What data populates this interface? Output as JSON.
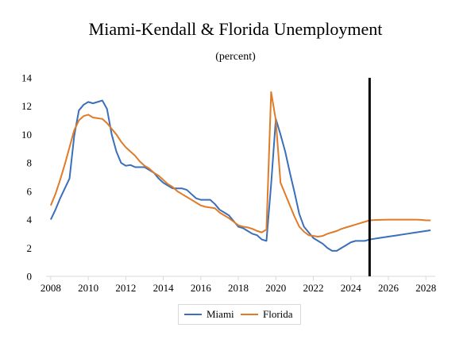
{
  "chart_data": {
    "type": "line",
    "title": "Miami-Kendall & Florida Unemployment",
    "subtitle": "(percent)",
    "xlabel": "",
    "ylabel": "",
    "xlim": [
      2007.75,
      2028.5
    ],
    "ylim": [
      0,
      14
    ],
    "x_ticks": [
      "2008",
      "2010",
      "2012",
      "2014",
      "2016",
      "2018",
      "2020",
      "2022",
      "2024",
      "2026",
      "2028"
    ],
    "y_ticks": [
      "0",
      "2",
      "4",
      "6",
      "8",
      "10",
      "12",
      "14"
    ],
    "grid": false,
    "legend": "bottom",
    "forecast_marker_x": 2025.0,
    "series": [
      {
        "name": "Miami",
        "color": "#3a6fba",
        "x": [
          2008.0,
          2008.25,
          2008.5,
          2008.75,
          2009.0,
          2009.25,
          2009.5,
          2009.75,
          2010.0,
          2010.25,
          2010.5,
          2010.75,
          2011.0,
          2011.25,
          2011.5,
          2011.75,
          2012.0,
          2012.25,
          2012.5,
          2012.75,
          2013.0,
          2013.25,
          2013.5,
          2013.75,
          2014.0,
          2014.25,
          2014.5,
          2014.75,
          2015.0,
          2015.25,
          2015.5,
          2015.75,
          2016.0,
          2016.25,
          2016.5,
          2016.75,
          2017.0,
          2017.25,
          2017.5,
          2017.75,
          2018.0,
          2018.25,
          2018.5,
          2018.75,
          2019.0,
          2019.25,
          2019.5,
          2019.75,
          2020.0,
          2020.25,
          2020.5,
          2020.75,
          2021.0,
          2021.25,
          2021.5,
          2021.75,
          2022.0,
          2022.25,
          2022.5,
          2022.75,
          2023.0,
          2023.25,
          2023.5,
          2023.75,
          2024.0,
          2024.25,
          2024.5,
          2024.75,
          2025.0,
          2025.25,
          2025.5,
          2025.75,
          2026.0,
          2026.25,
          2026.5,
          2026.75,
          2027.0,
          2027.25,
          2027.5,
          2027.75,
          2028.0,
          2028.25
        ],
        "values": [
          4.0,
          4.7,
          5.5,
          6.2,
          6.9,
          9.9,
          11.7,
          12.1,
          12.3,
          12.2,
          12.3,
          12.4,
          11.8,
          10.0,
          8.8,
          8.0,
          7.8,
          7.85,
          7.7,
          7.7,
          7.7,
          7.5,
          7.3,
          6.9,
          6.6,
          6.4,
          6.2,
          6.2,
          6.2,
          6.1,
          5.8,
          5.5,
          5.4,
          5.4,
          5.4,
          5.1,
          4.7,
          4.5,
          4.3,
          3.9,
          3.5,
          3.4,
          3.2,
          3.0,
          2.9,
          2.6,
          2.5,
          6.5,
          11.1,
          10.0,
          8.8,
          7.3,
          5.9,
          4.4,
          3.5,
          3.1,
          2.7,
          2.5,
          2.3,
          2.0,
          1.8,
          1.8,
          2.0,
          2.2,
          2.4,
          2.5,
          2.5,
          2.5,
          2.6,
          2.65,
          2.7,
          2.75,
          2.8,
          2.85,
          2.9,
          2.95,
          3.0,
          3.05,
          3.1,
          3.15,
          3.2,
          3.25
        ]
      },
      {
        "name": "Florida",
        "color": "#e07b28",
        "x": [
          2008.0,
          2008.25,
          2008.5,
          2008.75,
          2009.0,
          2009.25,
          2009.5,
          2009.75,
          2010.0,
          2010.25,
          2010.5,
          2010.75,
          2011.0,
          2011.25,
          2011.5,
          2011.75,
          2012.0,
          2012.25,
          2012.5,
          2012.75,
          2013.0,
          2013.25,
          2013.5,
          2013.75,
          2014.0,
          2014.25,
          2014.5,
          2014.75,
          2015.0,
          2015.25,
          2015.5,
          2015.75,
          2016.0,
          2016.25,
          2016.5,
          2016.75,
          2017.0,
          2017.25,
          2017.5,
          2017.75,
          2018.0,
          2018.25,
          2018.5,
          2018.75,
          2019.0,
          2019.25,
          2019.5,
          2019.75,
          2020.0,
          2020.25,
          2020.5,
          2020.75,
          2021.0,
          2021.25,
          2021.5,
          2021.75,
          2022.0,
          2022.25,
          2022.5,
          2022.75,
          2023.0,
          2023.25,
          2023.5,
          2023.75,
          2024.0,
          2024.25,
          2024.5,
          2024.75,
          2025.0,
          2025.25,
          2025.5,
          2025.75,
          2026.0,
          2026.25,
          2026.5,
          2026.75,
          2027.0,
          2027.25,
          2027.5,
          2027.75,
          2028.0,
          2028.25
        ],
        "values": [
          5.0,
          5.8,
          6.8,
          7.9,
          9.1,
          10.3,
          11.0,
          11.3,
          11.4,
          11.2,
          11.15,
          11.1,
          10.8,
          10.4,
          10.0,
          9.5,
          9.1,
          8.8,
          8.5,
          8.1,
          7.8,
          7.6,
          7.3,
          7.1,
          6.8,
          6.5,
          6.3,
          6.0,
          5.8,
          5.6,
          5.4,
          5.2,
          5.0,
          4.9,
          4.85,
          4.8,
          4.5,
          4.3,
          4.1,
          3.85,
          3.6,
          3.5,
          3.45,
          3.35,
          3.2,
          3.1,
          3.3,
          13.0,
          11.0,
          6.6,
          5.8,
          5.0,
          4.2,
          3.5,
          3.15,
          2.9,
          2.85,
          2.8,
          2.85,
          3.0,
          3.1,
          3.2,
          3.35,
          3.45,
          3.55,
          3.65,
          3.75,
          3.85,
          3.95,
          3.97,
          3.98,
          3.99,
          4.0,
          4.0,
          4.0,
          4.0,
          4.0,
          4.0,
          4.0,
          3.98,
          3.95,
          3.95
        ]
      }
    ]
  }
}
